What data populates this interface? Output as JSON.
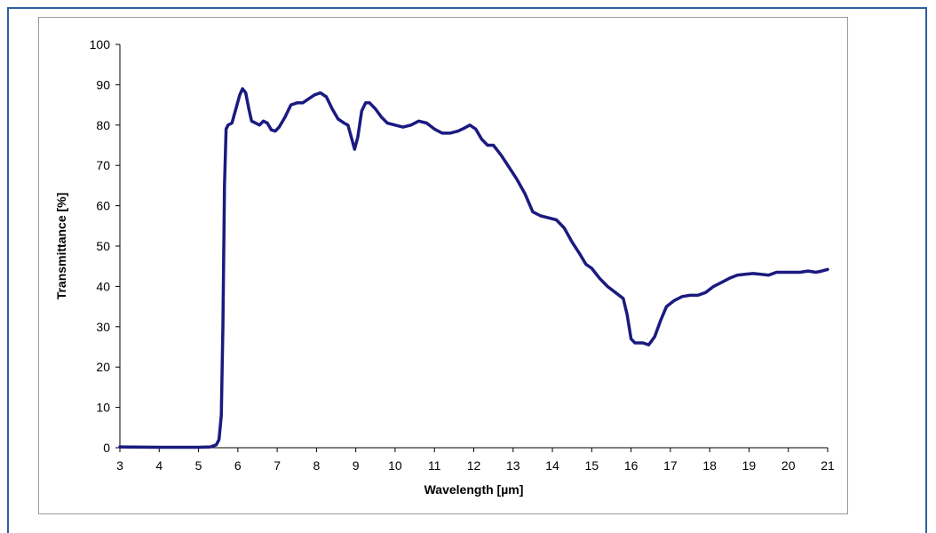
{
  "chart_data": {
    "type": "line",
    "title": "",
    "xlabel": "Wavelength [µm]",
    "ylabel": "Transmittance [%]",
    "xlim": [
      3,
      21
    ],
    "ylim": [
      0,
      100
    ],
    "x_ticks": [
      "3",
      "4",
      "5",
      "6",
      "7",
      "8",
      "9",
      "10",
      "11",
      "12",
      "13",
      "14",
      "15",
      "16",
      "17",
      "18",
      "19",
      "20",
      "21"
    ],
    "y_ticks": [
      "0",
      "10",
      "20",
      "30",
      "40",
      "50",
      "60",
      "70",
      "80",
      "90",
      "100"
    ],
    "grid": false,
    "legend": "none",
    "line_color": "#1a1a80",
    "series": [
      {
        "x": [
          3.0,
          4.0,
          5.0,
          5.3,
          5.45,
          5.52,
          5.58,
          5.62,
          5.66,
          5.7,
          5.75,
          5.85,
          5.95,
          6.05,
          6.12,
          6.2,
          6.28,
          6.35,
          6.45,
          6.55,
          6.65,
          6.75,
          6.85,
          6.95,
          7.05,
          7.2,
          7.35,
          7.5,
          7.65,
          7.8,
          7.95,
          8.1,
          8.25,
          8.4,
          8.55,
          8.7,
          8.8,
          8.9,
          8.97,
          9.05,
          9.15,
          9.25,
          9.35,
          9.5,
          9.65,
          9.8,
          10.0,
          10.2,
          10.4,
          10.6,
          10.8,
          11.0,
          11.2,
          11.4,
          11.6,
          11.75,
          11.9,
          12.05,
          12.2,
          12.35,
          12.5,
          12.7,
          12.9,
          13.1,
          13.3,
          13.5,
          13.7,
          13.9,
          14.1,
          14.3,
          14.5,
          14.7,
          14.85,
          15.0,
          15.2,
          15.4,
          15.6,
          15.8,
          15.9,
          16.0,
          16.1,
          16.3,
          16.45,
          16.6,
          16.75,
          16.9,
          17.1,
          17.3,
          17.5,
          17.7,
          17.9,
          18.1,
          18.3,
          18.5,
          18.7,
          18.9,
          19.1,
          19.3,
          19.5,
          19.7,
          19.9,
          20.1,
          20.3,
          20.5,
          20.7,
          20.85,
          21.0
        ],
        "y": [
          0.2,
          0.1,
          0.1,
          0.2,
          0.7,
          2.0,
          8.0,
          30.0,
          65.0,
          79.0,
          80.0,
          80.5,
          84.0,
          87.5,
          89.0,
          88.0,
          84.0,
          81.0,
          80.5,
          80.0,
          81.0,
          80.5,
          78.8,
          78.5,
          79.5,
          82.0,
          85.0,
          85.5,
          85.5,
          86.5,
          87.5,
          88.0,
          87.0,
          84.0,
          81.5,
          80.5,
          80.0,
          76.5,
          74.0,
          77.0,
          83.5,
          85.5,
          85.5,
          84.0,
          82.0,
          80.5,
          80.0,
          79.5,
          80.0,
          81.0,
          80.5,
          79.0,
          78.0,
          78.0,
          78.5,
          79.2,
          80.0,
          79.0,
          76.5,
          75.0,
          75.0,
          72.5,
          69.5,
          66.5,
          63.0,
          58.5,
          57.5,
          57.0,
          56.5,
          54.5,
          51.0,
          48.0,
          45.5,
          44.5,
          42.0,
          40.0,
          38.5,
          37.0,
          33.0,
          27.0,
          26.0,
          26.0,
          25.5,
          27.5,
          31.5,
          35.0,
          36.5,
          37.5,
          37.8,
          37.8,
          38.5,
          40.0,
          41.0,
          42.0,
          42.8,
          43.0,
          43.2,
          43.0,
          42.8,
          43.5,
          43.5,
          43.5,
          43.5,
          43.8,
          43.5,
          43.8,
          44.2
        ]
      }
    ]
  }
}
